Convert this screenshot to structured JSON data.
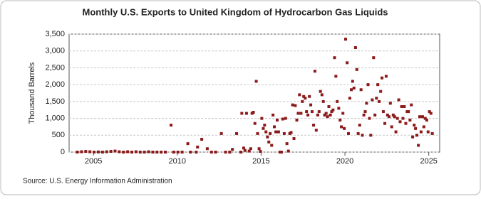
{
  "chart_data": {
    "type": "scatter",
    "title": "Monthly U.S. Exports to United Kingdom of Hydrocarbon Gas Liquids",
    "y_label": "Thousand Barrels",
    "source": "Source: U.S. Energy Information Administration",
    "color": "#8b1a1a",
    "grid": true,
    "xlim": [
      2003.55,
      2025.65
    ],
    "xticks": [
      2005,
      2010,
      2015,
      2020,
      2025
    ],
    "ylim": [
      0,
      3500
    ],
    "yticks": [
      0,
      500,
      {
        "value": 1000,
        "label": "1,000"
      },
      {
        "value": 1500,
        "label": "1,500"
      },
      {
        "value": 2000,
        "label": "2,000"
      },
      {
        "value": 2500,
        "label": "2,500"
      },
      {
        "value": 3000,
        "label": "3,000"
      },
      {
        "value": 3500,
        "label": "3,500"
      }
    ],
    "x": [
      2004.04,
      2004.29,
      2004.54,
      2004.79,
      2005.04,
      2005.29,
      2005.54,
      2005.79,
      2006.04,
      2006.29,
      2006.54,
      2006.79,
      2007.04,
      2007.29,
      2007.54,
      2007.79,
      2008.04,
      2008.29,
      2008.54,
      2008.79,
      2009.04,
      2009.29,
      2009.63,
      2009.79,
      2010.04,
      2010.29,
      2010.63,
      2010.79,
      2011.13,
      2011.21,
      2011.46,
      2011.79,
      2012.04,
      2012.29,
      2012.63,
      2012.88,
      2013.13,
      2013.29,
      2013.54,
      2013.79,
      2013.85,
      2013.96,
      2014.04,
      2014.13,
      2014.29,
      2014.38,
      2014.46,
      2014.54,
      2014.63,
      2014.71,
      2014.79,
      2014.88,
      2014.96,
      2015.04,
      2015.13,
      2015.21,
      2015.29,
      2015.38,
      2015.46,
      2015.54,
      2015.63,
      2015.71,
      2015.79,
      2015.88,
      2015.96,
      2016.04,
      2016.13,
      2016.21,
      2016.29,
      2016.38,
      2016.46,
      2016.54,
      2016.63,
      2016.71,
      2016.79,
      2016.88,
      2016.96,
      2017.04,
      2017.13,
      2017.21,
      2017.29,
      2017.38,
      2017.46,
      2017.54,
      2017.63,
      2017.71,
      2017.79,
      2017.88,
      2017.96,
      2018.04,
      2018.13,
      2018.21,
      2018.29,
      2018.38,
      2018.46,
      2018.54,
      2018.63,
      2018.71,
      2018.79,
      2018.88,
      2018.96,
      2019.04,
      2019.13,
      2019.21,
      2019.29,
      2019.38,
      2019.46,
      2019.54,
      2019.63,
      2019.71,
      2019.79,
      2019.88,
      2019.96,
      2020.04,
      2020.13,
      2020.21,
      2020.29,
      2020.38,
      2020.46,
      2020.54,
      2020.63,
      2020.71,
      2020.79,
      2020.88,
      2020.96,
      2021.04,
      2021.13,
      2021.21,
      2021.29,
      2021.38,
      2021.46,
      2021.54,
      2021.63,
      2021.71,
      2021.79,
      2021.88,
      2021.96,
      2022.04,
      2022.13,
      2022.21,
      2022.29,
      2022.38,
      2022.46,
      2022.54,
      2022.63,
      2022.71,
      2022.79,
      2022.88,
      2022.96,
      2023.04,
      2023.13,
      2023.21,
      2023.29,
      2023.38,
      2023.46,
      2023.54,
      2023.63,
      2023.71,
      2023.79,
      2023.88,
      2023.96,
      2024.04,
      2024.13,
      2024.21,
      2024.29,
      2024.38,
      2024.46,
      2024.54,
      2024.63,
      2024.71,
      2024.79,
      2024.88,
      2024.96,
      2025.04,
      2025.13,
      2025.21
    ],
    "values": [
      0,
      10,
      20,
      10,
      0,
      5,
      0,
      10,
      20,
      30,
      10,
      0,
      10,
      0,
      10,
      0,
      0,
      10,
      0,
      0,
      0,
      0,
      800,
      0,
      0,
      0,
      250,
      0,
      0,
      150,
      380,
      100,
      0,
      0,
      550,
      0,
      0,
      80,
      550,
      0,
      1150,
      120,
      50,
      1150,
      30,
      100,
      1150,
      1180,
      850,
      2100,
      550,
      100,
      20,
      1000,
      700,
      800,
      600,
      450,
      300,
      550,
      200,
      1100,
      750,
      600,
      950,
      600,
      0,
      0,
      980,
      550,
      1000,
      250,
      30,
      550,
      580,
      1400,
      400,
      1380,
      950,
      1150,
      1700,
      1150,
      1500,
      1650,
      1600,
      1200,
      1100,
      1650,
      1400,
      1200,
      800,
      2400,
      650,
      1100,
      1200,
      1800,
      1700,
      1500,
      1100,
      1150,
      1050,
      1350,
      1100,
      1200,
      1250,
      2800,
      2250,
      1500,
      1300,
      950,
      750,
      1150,
      700,
      3350,
      2650,
      550,
      1600,
      1850,
      2100,
      1900,
      3100,
      2450,
      550,
      800,
      1850,
      500,
      1100,
      1200,
      1450,
      2000,
      1000,
      500,
      1550,
      2800,
      1100,
      1600,
      2000,
      1500,
      1800,
      2200,
      1200,
      850,
      2250,
      1100,
      1050,
      1450,
      750,
      1100,
      1050,
      600,
      1000,
      1550,
      900,
      1350,
      1000,
      1350,
      850,
      1200,
      1200,
      950,
      1400,
      450,
      800,
      700,
      500,
      200,
      1050,
      600,
      1050,
      750,
      1000,
      950,
      600,
      1200,
      1150,
      550
    ]
  }
}
